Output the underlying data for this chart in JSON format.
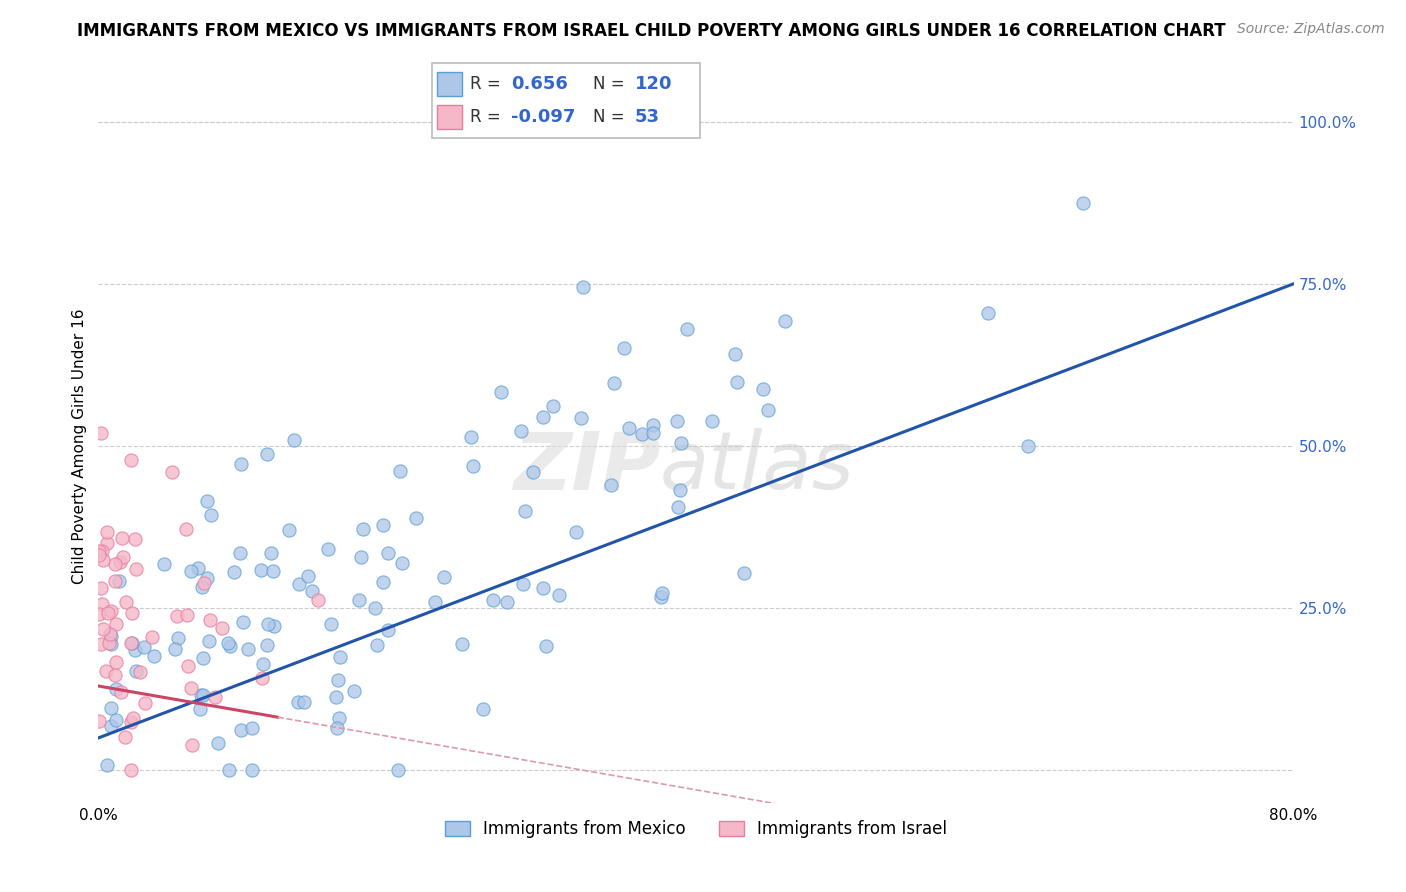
{
  "title": "IMMIGRANTS FROM MEXICO VS IMMIGRANTS FROM ISRAEL CHILD POVERTY AMONG GIRLS UNDER 16 CORRELATION CHART",
  "source": "Source: ZipAtlas.com",
  "ylabel": "Child Poverty Among Girls Under 16",
  "watermark_zip": "ZIP",
  "watermark_atlas": "atlas",
  "legend_R_mexico": "0.656",
  "legend_N_mexico": "120",
  "legend_R_israel": "-0.097",
  "legend_N_israel": "53",
  "xlim": [
    0.0,
    0.8
  ],
  "ylim": [
    -0.05,
    1.05
  ],
  "ytick_positions": [
    0.25,
    0.5,
    0.75,
    1.0
  ],
  "ytick_labels": [
    "25.0%",
    "50.0%",
    "75.0%",
    "100.0%"
  ],
  "background_color": "#ffffff",
  "grid_color": "#cccccc",
  "scatter_mexico_color": "#aec6e8",
  "scatter_mexico_edge": "#5a9fd4",
  "scatter_israel_color": "#f4b8c8",
  "scatter_israel_edge": "#e87ca0",
  "line_mexico_color": "#2255aa",
  "line_israel_solid_color": "#cc4466",
  "line_israel_dash_color": "#dd99aa",
  "title_fontsize": 12,
  "source_fontsize": 10,
  "axis_label_fontsize": 11,
  "tick_fontsize": 11,
  "legend_fontsize": 13
}
